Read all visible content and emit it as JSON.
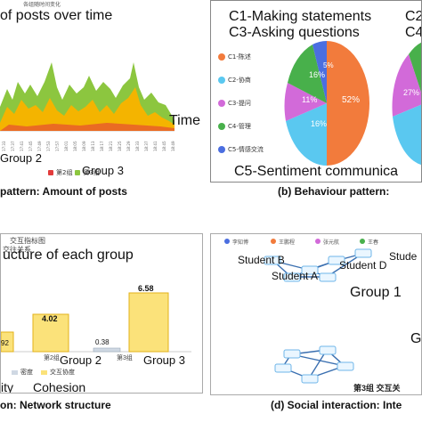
{
  "panel_a": {
    "title": "of posts over time",
    "subtitle_cn": "各组随时间变化",
    "x_label": "Time",
    "series_label_group2": "Group 2",
    "series_label_group3": "Group 3",
    "legend_small_1": "第2组",
    "legend_small_2": "第3组",
    "caption": "pattern: Amount of posts",
    "colors": {
      "group2": "#f4b400",
      "group3": "#8cc63f",
      "group1": "#e23b3b"
    },
    "x_ticks": [
      "17:33",
      "17:35",
      "17:37",
      "17:39",
      "17:41",
      "17:43",
      "17:45",
      "17:47",
      "17:49",
      "17:51",
      "17:53",
      "17:55",
      "17:57",
      "17:59",
      "18:01",
      "18:03",
      "18:05",
      "18:07",
      "18:09",
      "18:11",
      "18:13",
      "18:15",
      "18:17",
      "18:19",
      "18:21",
      "18:23",
      "18:25",
      "18:27",
      "18:29",
      "18:31",
      "18:33",
      "18:35",
      "18:37",
      "18:39",
      "18:41",
      "18:43",
      "18:45",
      "18:47",
      "18:49",
      "18:51",
      "18:53",
      "18:55",
      "18:57",
      "18:59"
    ]
  },
  "panel_b": {
    "line1": "C1-Making statements",
    "line1_extra": "C2",
    "line2": "C3-Asking questions",
    "line2_extra": "C4",
    "footer": "C5-Sentiment communica",
    "legend": [
      {
        "label": "C1-陈述",
        "color": "#f27b3c"
      },
      {
        "label": "C2-协商",
        "color": "#5ac8f0"
      },
      {
        "label": "C3-提问",
        "color": "#d26ad9"
      },
      {
        "label": "C4-管理",
        "color": "#48b04b"
      },
      {
        "label": "C5-情感交流",
        "color": "#4b6ee0"
      }
    ],
    "pie_labels": {
      "p52": "52%",
      "p16a": "16%",
      "p11": "11%",
      "p16b": "16%",
      "p5": "5%",
      "p27": "27%"
    },
    "caption": "(b) Behaviour pattern:"
  },
  "panel_c": {
    "header_cn": "交互指标图",
    "sub_cn": "交往关系",
    "title": "ucture of each group",
    "values": [
      "92",
      "4.02",
      "0.38",
      "6.58"
    ],
    "group_labels": [
      "Group 2",
      "Group 3"
    ],
    "axis_cn": [
      "第2组",
      "第3组"
    ],
    "legend_cn": [
      "密度",
      "交互协度"
    ],
    "legend_en": [
      "ity",
      "Cohesion"
    ],
    "caption": "on: Network structure"
  },
  "panel_d": {
    "top_names": [
      "李知博",
      "王鹏程",
      "张元航",
      "王春"
    ],
    "student_b": "Student B",
    "student_a": "Student A",
    "student_d": "Student D",
    "student_edge": "Stude",
    "group_label": "Group 1",
    "g_edge": "G",
    "bottom_cn": "第3组 交互关",
    "caption": "(d) Social interaction: Inte"
  }
}
